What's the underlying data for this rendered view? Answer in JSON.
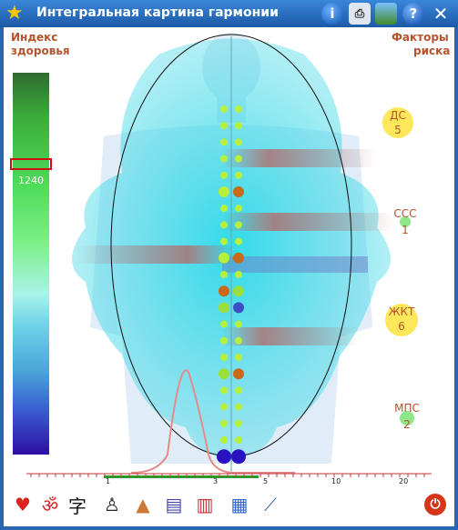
{
  "window": {
    "title": "Интегральная картина гармонии"
  },
  "labels": {
    "health_index_1": "Индекс",
    "health_index_2": "здоровья",
    "risk_factors_1": "Факторы",
    "risk_factors_2": "риска"
  },
  "scale": {
    "value": "1240"
  },
  "risks": [
    {
      "name": "ДС",
      "value": "5"
    },
    {
      "name": "ССС",
      "value": "1"
    },
    {
      "name": "ЖКТ",
      "value": "6"
    },
    {
      "name": "МПС",
      "value": "2"
    }
  ],
  "axis": {
    "ticks": [
      "1",
      "3",
      "5",
      "10",
      "20"
    ]
  },
  "icons": [
    "heart-pulse-icon",
    "om-icon",
    "hieroglyph-icon",
    "person-icon",
    "people-group-icon",
    "bars-chart-icon",
    "balance-chart-icon",
    "split-chart-icon",
    "line-chart-icon",
    "power-icon"
  ],
  "colors": {
    "accent": "#b5532d",
    "titlebar": "#2766b0"
  }
}
